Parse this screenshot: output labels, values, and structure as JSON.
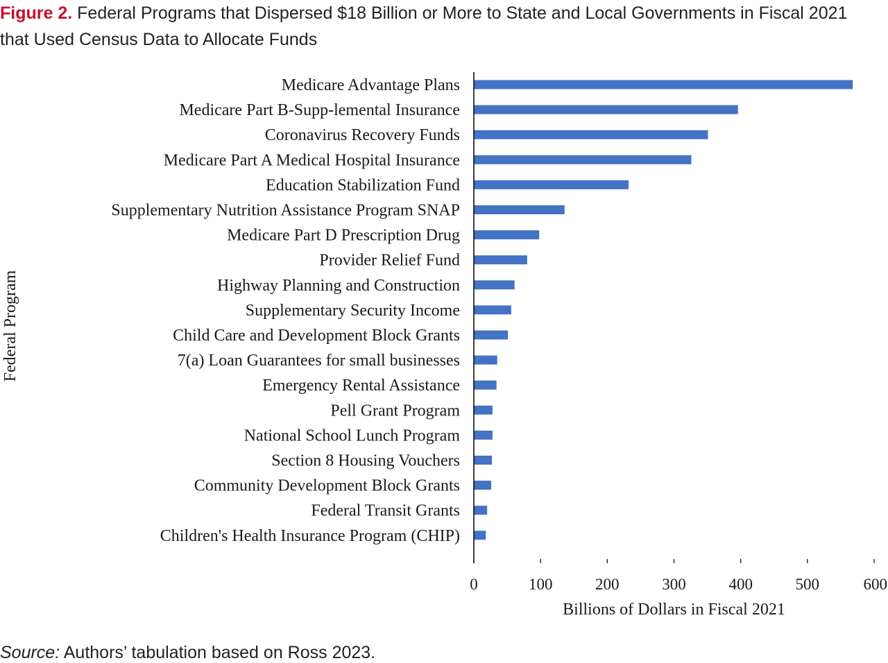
{
  "figure": {
    "label": "Figure 2.",
    "title": "Federal Programs that Dispersed $18 Billion or More to State and Local Governments in Fiscal 2021 that Used Census Data to Allocate Funds"
  },
  "source": {
    "label": "Source:",
    "text": "Authors’ tabulation based on Ross 2023."
  },
  "colors": {
    "bar": "#4472c4",
    "axis": "#000000",
    "title_label": "#c8102e"
  },
  "chart_data": {
    "type": "bar",
    "orientation": "horizontal",
    "categories": [
      "Medicare Advantage Plans",
      "Medicare Part B-Supp-lemental Insurance",
      "Coronavirus Recovery Funds",
      "Medicare Part A Medical Hospital Insurance",
      "Education Stabilization Fund",
      "Supplementary Nutrition Assistance Program SNAP",
      "Medicare Part D Prescription Drug",
      "Provider Relief Fund",
      "Highway Planning and Construction",
      "Supplementary Security Income",
      "Child Care and Development Block Grants",
      "7(a) Loan Guarantees for small businesses",
      "Emergency Rental Assistance",
      "Pell Grant Program",
      "National School Lunch Program",
      "Section 8 Housing Vouchers",
      "Community Development Block Grants",
      "Federal Transit Grants",
      "Children's Health Insurance Program (CHIP)"
    ],
    "values": [
      568,
      396,
      351,
      326,
      232,
      136,
      98,
      80,
      61,
      56,
      51,
      35,
      34,
      28,
      28,
      27,
      26,
      20,
      18
    ],
    "xlabel": "Billions of Dollars in Fiscal 2021",
    "ylabel": "Federal Program",
    "xlim": [
      0,
      600
    ],
    "xticks": [
      0,
      100,
      200,
      300,
      400,
      500,
      600
    ],
    "grid": false,
    "legend": "none"
  }
}
